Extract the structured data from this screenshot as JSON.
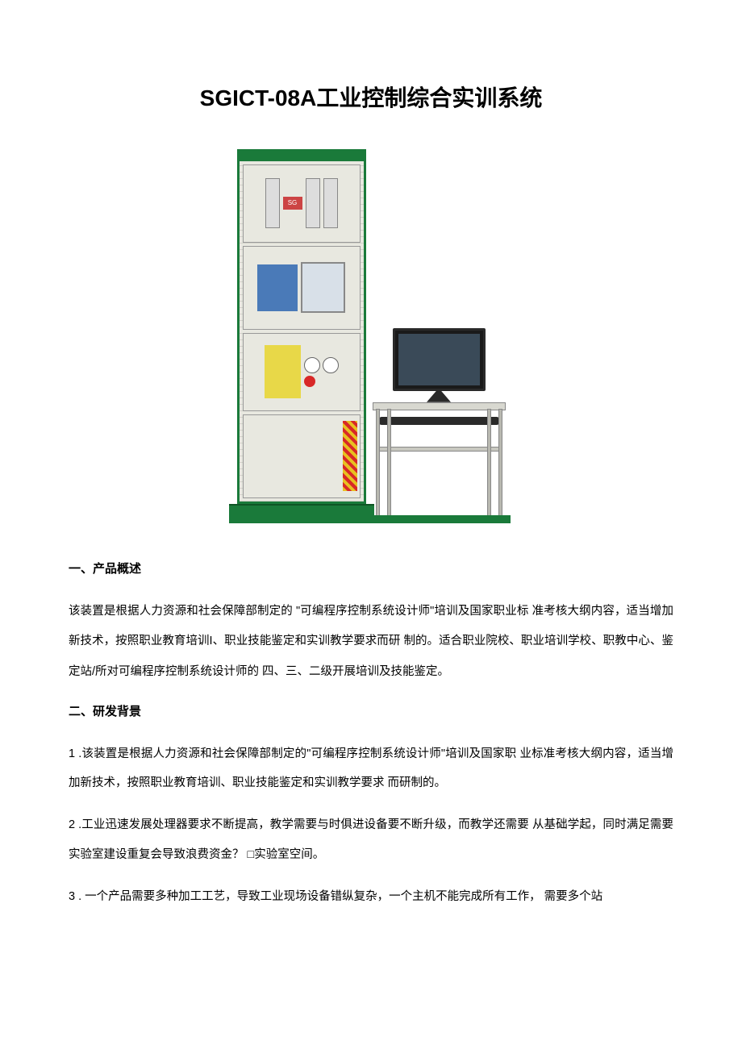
{
  "document": {
    "title": "SGICT-08A工业控制综合实训系统",
    "colors": {
      "text": "#000000",
      "background": "#ffffff",
      "cabinet_frame": "#1a7a3a",
      "plc_blue": "#4a7ab8",
      "yellow_panel": "#e8d848",
      "red_button": "#d82828",
      "monitor_black": "#1a1a1a",
      "desk_frame": "#b8b8b0"
    },
    "typography": {
      "title_fontsize": 28,
      "title_weight": "bold",
      "heading_fontsize": 15,
      "heading_weight": "bold",
      "body_fontsize": 14.5,
      "body_line_height": 2.6
    },
    "sections": {
      "overview": {
        "heading": "一、产品概述",
        "text": "该装置是根据人力资源和社会保障部制定的 \"可编程序控制系统设计师\"培训及国家职业标  准考核大纲内容，适当增加新技术，按照职业教育培训I、职业技能鉴定和实训教学要求而研 制的。适合职业院校、职业培训学校、职教中心、鉴定站/所对可编程序控制系统设计师的 四、三、二级开展培训及技能鉴定。"
      },
      "background": {
        "heading": "二、研发背景",
        "items": [
          "1  .该装置是根据人力资源和社会保障部制定的\"可编程序控制系统设计师\"培训及国家职 业标准考核大纲内容，适当增加新技术，按照职业教育培训、职业技能鉴定和实训教学要求 而研制的。",
          "2  .工业迅速发展处理器要求不断提高，教学需要与时俱进设备要不断升级，而教学还需要 从基础学起，同时满足需要实验室建设重复会导致浪费资金？ □实验室空间。",
          "3  . 一个产品需要多种加工工艺，导致工业现场设备错纵复杂，一个主机不能完成所有工作，  需要多个站"
        ]
      }
    },
    "product_image": {
      "cabinet_logo": "SG"
    }
  }
}
